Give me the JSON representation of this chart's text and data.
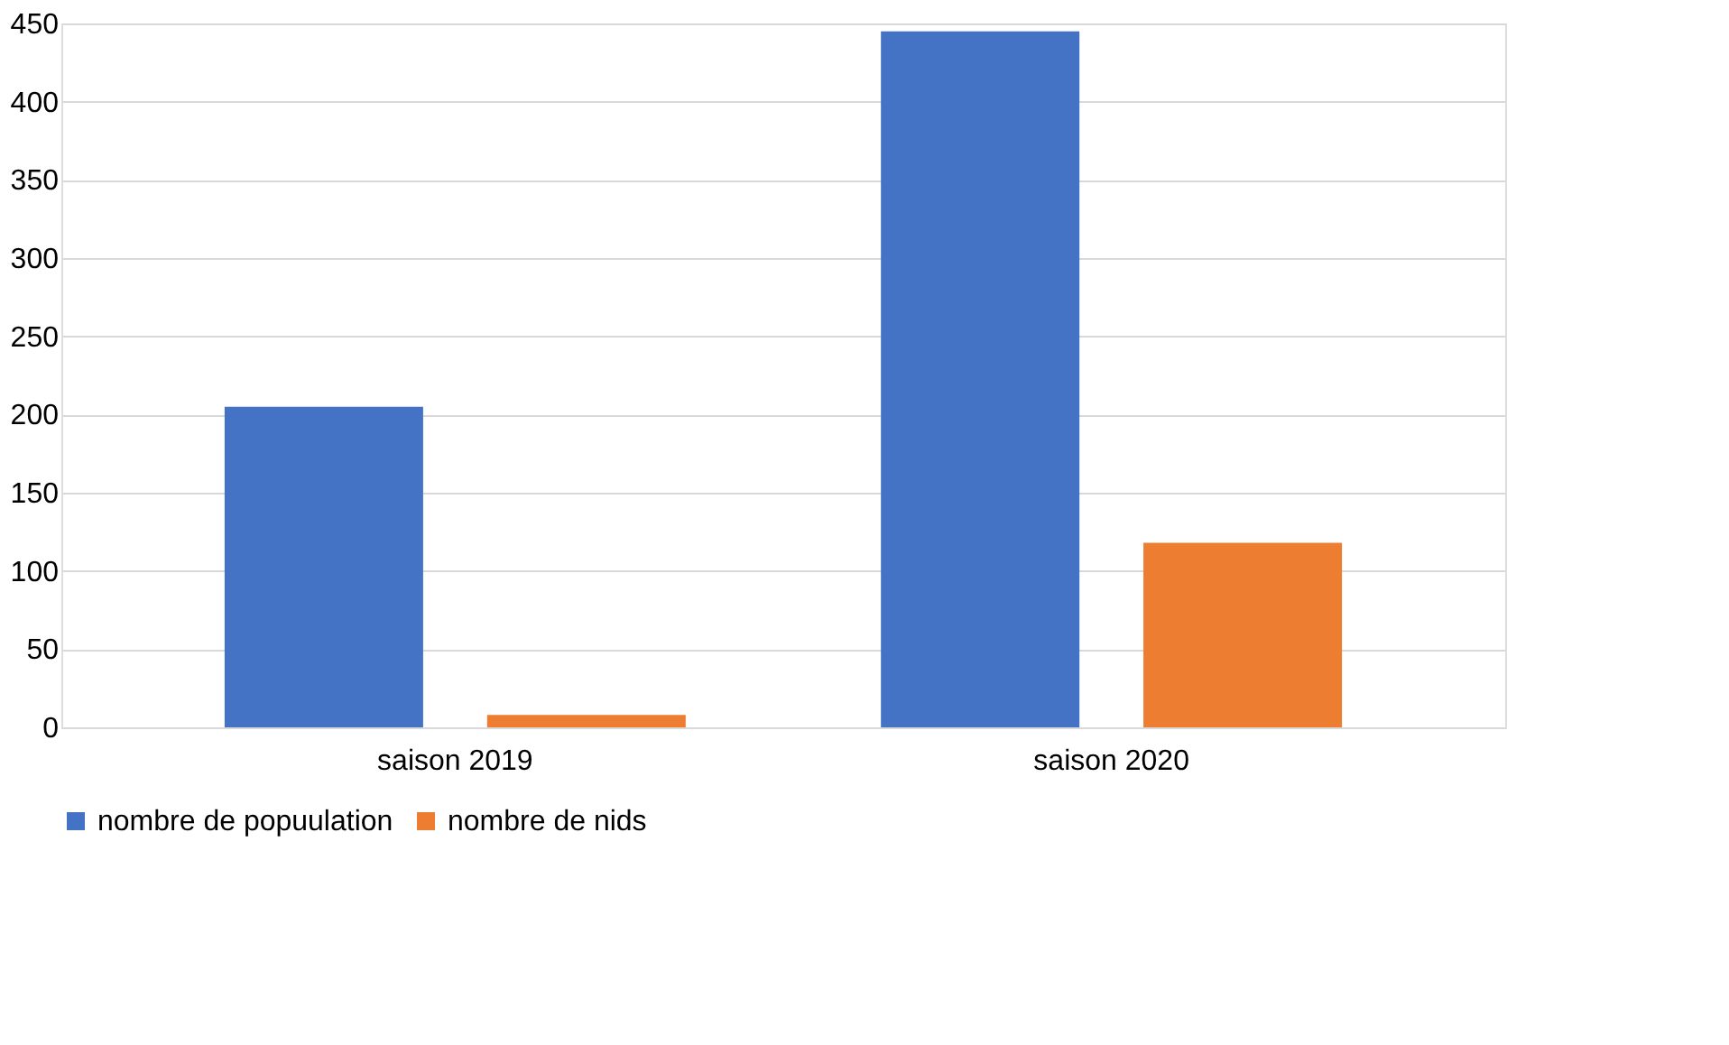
{
  "chart_data": {
    "type": "bar",
    "categories": [
      "saison 2019",
      "saison 2020"
    ],
    "series": [
      {
        "name": "nombre de popuulation",
        "color": "#4472c4",
        "values": [
          205,
          445
        ]
      },
      {
        "name": "nombre de nids",
        "color": "#ed7d31",
        "values": [
          8,
          118
        ]
      }
    ],
    "ylim": [
      0,
      450
    ],
    "yticks": [
      0,
      50,
      100,
      150,
      200,
      250,
      300,
      350,
      400,
      450
    ],
    "grid": "y",
    "legend": "bottom"
  }
}
